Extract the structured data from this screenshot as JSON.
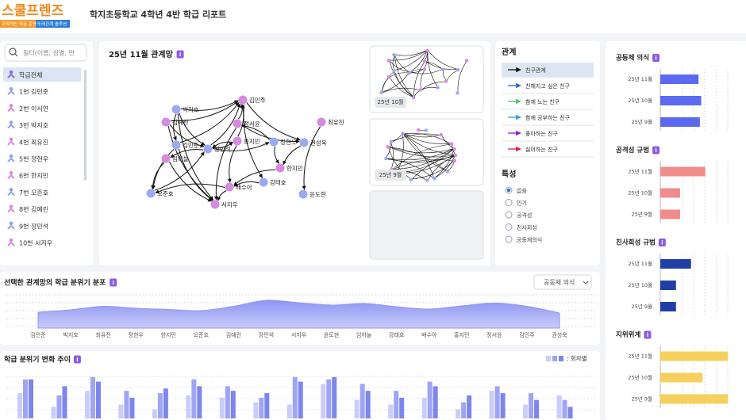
{
  "header": {
    "logo": "스쿨프렌즈",
    "logo_tag_left": "과학적인 학급 운영",
    "logo_tag_right": "또래관계 솔루션",
    "title": "학지초등학교 4학년 4반 학급 리포트"
  },
  "info": "i",
  "sidebar": {
    "search_placeholder": "필터(이름, 성별, 번",
    "items": [
      {
        "label": "학급전체",
        "color": "#8a6fe8"
      },
      {
        "label": "1번 김민준",
        "color": "#8fa2ee"
      },
      {
        "label": "2번 이서연",
        "color": "#d58be0"
      },
      {
        "label": "3번 박지호",
        "color": "#8fa2ee"
      },
      {
        "label": "4번 최유진",
        "color": "#d58be0"
      },
      {
        "label": "5번 정현우",
        "color": "#8fa2ee"
      },
      {
        "label": "6번 한지민",
        "color": "#d58be0"
      },
      {
        "label": "7번 오준호",
        "color": "#8fa2ee"
      },
      {
        "label": "8번 김예린",
        "color": "#d58be0"
      },
      {
        "label": "9번 장민석",
        "color": "#8fa2ee"
      },
      {
        "label": "10번 서지우",
        "color": "#d58be0"
      }
    ],
    "selected": 0
  },
  "network": {
    "title": "25년 11월 관계망",
    "nodes": [
      {
        "label": "김민주",
        "color": "#d68ae0"
      },
      {
        "label": "박지호",
        "color": "#9aa9f1"
      },
      {
        "label": "김예린",
        "color": "#d68ae0"
      },
      {
        "label": "정서윤",
        "color": "#d68ae0"
      },
      {
        "label": "최유진",
        "color": "#d68ae0"
      },
      {
        "label": "홍지민",
        "color": "#d68ae0"
      },
      {
        "label": "정현우",
        "color": "#9aa9f1"
      },
      {
        "label": "권성욱",
        "color": "#9aa9f1"
      },
      {
        "label": "김민준",
        "color": "#9aa9f1"
      },
      {
        "label": "장민석",
        "color": "#9aa9f1"
      },
      {
        "label": "임하늘",
        "color": "#d68ae0"
      },
      {
        "label": "한지민",
        "color": "#d68ae0"
      },
      {
        "label": "강태호",
        "color": "#9aa9f1"
      },
      {
        "label": "배수아",
        "color": "#d68ae0"
      },
      {
        "label": "오준호",
        "color": "#9aa9f1"
      },
      {
        "label": "윤도현",
        "color": "#9aa9f1"
      },
      {
        "label": "서지우",
        "color": "#d68ae0"
      }
    ],
    "thumbnails": [
      "25년 10월",
      "25년 9월"
    ]
  },
  "relations": {
    "title": "관계",
    "selected": 0,
    "items": [
      {
        "label": "친구관계",
        "color": "#111111"
      },
      {
        "label": "친해지고 싶은 친구",
        "color": "#2f5fe0"
      },
      {
        "label": "함께 노는 친구",
        "color": "#4cc46a"
      },
      {
        "label": "함께 공부하는 친구",
        "color": "#2a9be0"
      },
      {
        "label": "좋아하는 친구",
        "color": "#8a22c4"
      },
      {
        "label": "싫어하는 친구",
        "color": "#d8203c"
      }
    ]
  },
  "traits": {
    "title": "특성",
    "selected": 0,
    "options": [
      "없음",
      "인기",
      "공격성",
      "친사회성",
      "공동체의식"
    ]
  },
  "chart_data": [
    {
      "type": "area",
      "title": "선택한 관계망의 학급 분위기 분포",
      "selector": "공동체 의식",
      "categories": [
        "김민준",
        "박지호",
        "최유진",
        "정현우",
        "한지민",
        "오준호",
        "김예린",
        "장민석",
        "서지우",
        "윤도현",
        "임하늘",
        "강태호",
        "배수아",
        "홍지민",
        "정서윤",
        "김민주",
        "권성욱"
      ],
      "values": [
        40,
        46,
        55,
        50,
        47,
        44,
        55,
        70,
        64,
        58,
        62,
        54,
        48,
        56,
        63,
        55,
        38
      ],
      "color": "#8d95f3",
      "ylim": [
        0,
        100
      ]
    },
    {
      "type": "bar",
      "title": "학급 분위기 변화 추이",
      "legend_label": ": 회차별",
      "categories": [
        null,
        null,
        null,
        null,
        null,
        null,
        null,
        null,
        null,
        null,
        null,
        null,
        null,
        null,
        null,
        null,
        null
      ],
      "series": [
        {
          "color": "#c9cdfa",
          "values": [
            55,
            25,
            60,
            30,
            20,
            50,
            45,
            35,
            30,
            75,
            40,
            30,
            45,
            20,
            60,
            30,
            50
          ]
        },
        {
          "color": "#9ea5f5",
          "values": [
            85,
            50,
            90,
            60,
            55,
            85,
            70,
            45,
            90,
            85,
            75,
            60,
            80,
            35,
            70,
            55,
            40
          ]
        },
        {
          "color": "#7d85ef",
          "values": [
            85,
            70,
            80,
            45,
            65,
            70,
            60,
            55,
            80,
            90,
            60,
            45,
            70,
            50,
            55,
            40,
            25
          ]
        }
      ],
      "ylim": [
        0,
        100
      ]
    },
    {
      "type": "hbar",
      "title": "공동체 의식",
      "categories": [
        "25년 11월",
        "25년 10월",
        "25년 9월"
      ],
      "values": [
        56,
        60,
        58
      ],
      "color": "#5b6af0",
      "xlim": [
        0,
        100
      ]
    },
    {
      "type": "hbar",
      "title": "공격성 규범",
      "categories": [
        "25년 11월",
        "25년 10월",
        "25년 9월"
      ],
      "values": [
        66,
        29,
        29
      ],
      "color": "#f28b8b",
      "xlim": [
        0,
        100
      ]
    },
    {
      "type": "hbar",
      "title": "친사회성 규범",
      "categories": [
        "25년 11월",
        "25년 10월",
        "25년 9월"
      ],
      "values": [
        45,
        23,
        23
      ],
      "color": "#1f3ea6",
      "xlim": [
        0,
        100
      ]
    },
    {
      "type": "hbar",
      "title": "지위위계",
      "categories": [
        "25년 11월",
        "25년 10월",
        "25년 9월"
      ],
      "values": [
        99,
        62,
        99
      ],
      "color": "#f6d05c",
      "xlim": [
        0,
        100
      ]
    }
  ]
}
